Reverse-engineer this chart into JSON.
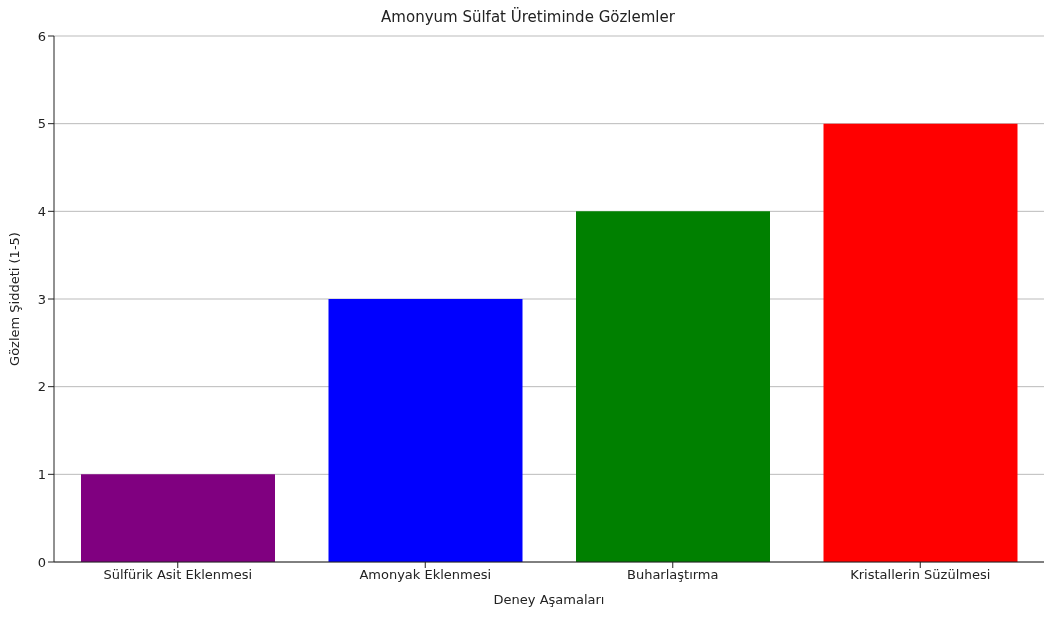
{
  "chart_data": {
    "type": "bar",
    "title": "Amonyum Sülfat Üretiminde Gözlemler",
    "xlabel": "Deney Aşamaları",
    "ylabel": "Gözlem Şiddeti (1-5)",
    "categories": [
      "Sülfürik Asit Eklenmesi",
      "Amonyak Eklenmesi",
      "Buharlaştırma",
      "Kristallerin Süzülmesi"
    ],
    "values": [
      1,
      3,
      4,
      5
    ],
    "colors": [
      "#800080",
      "#0000ff",
      "#008000",
      "#ff0000"
    ],
    "ylim": [
      0,
      6
    ],
    "yticks": [
      0,
      1,
      2,
      3,
      4,
      5,
      6
    ],
    "grid": "y"
  }
}
